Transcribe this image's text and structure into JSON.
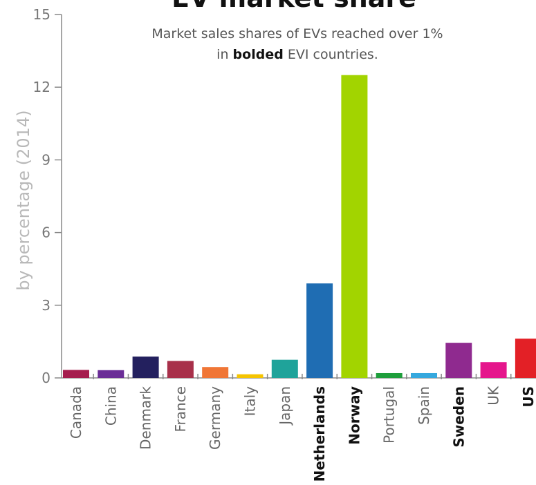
{
  "chart_data": {
    "type": "bar",
    "title": "EV market share",
    "subtitle": {
      "line1": "Market sales shares of EVs reached over 1%",
      "line2_pre": "in ",
      "line2_bold": "bolded",
      "line2_post": " EVI countries."
    },
    "xlabel": "",
    "ylabel": "by percentage (2014)",
    "ylim": [
      0,
      15
    ],
    "yticks": [
      "0",
      "3",
      "6",
      "9",
      "12",
      "15"
    ],
    "grid": false,
    "categories": [
      "Canada",
      "China",
      "Denmark",
      "France",
      "Germany",
      "Italy",
      "Japan",
      "Netherlands",
      "Norway",
      "Portugal",
      "Spain",
      "Sweden",
      "UK",
      "US"
    ],
    "bold_categories": [
      "Netherlands",
      "Norway",
      "Sweden",
      "US"
    ],
    "values": [
      0.33,
      0.32,
      0.88,
      0.7,
      0.45,
      0.15,
      0.75,
      3.9,
      12.5,
      0.2,
      0.2,
      1.45,
      0.65,
      1.62
    ],
    "colors": [
      "#a51d4e",
      "#6a2d96",
      "#23205e",
      "#a8304a",
      "#f07636",
      "#f5c400",
      "#1fa39a",
      "#1f6db3",
      "#a2d400",
      "#1e9e3b",
      "#35a8de",
      "#8f2a8f",
      "#e5168c",
      "#e32026"
    ]
  }
}
